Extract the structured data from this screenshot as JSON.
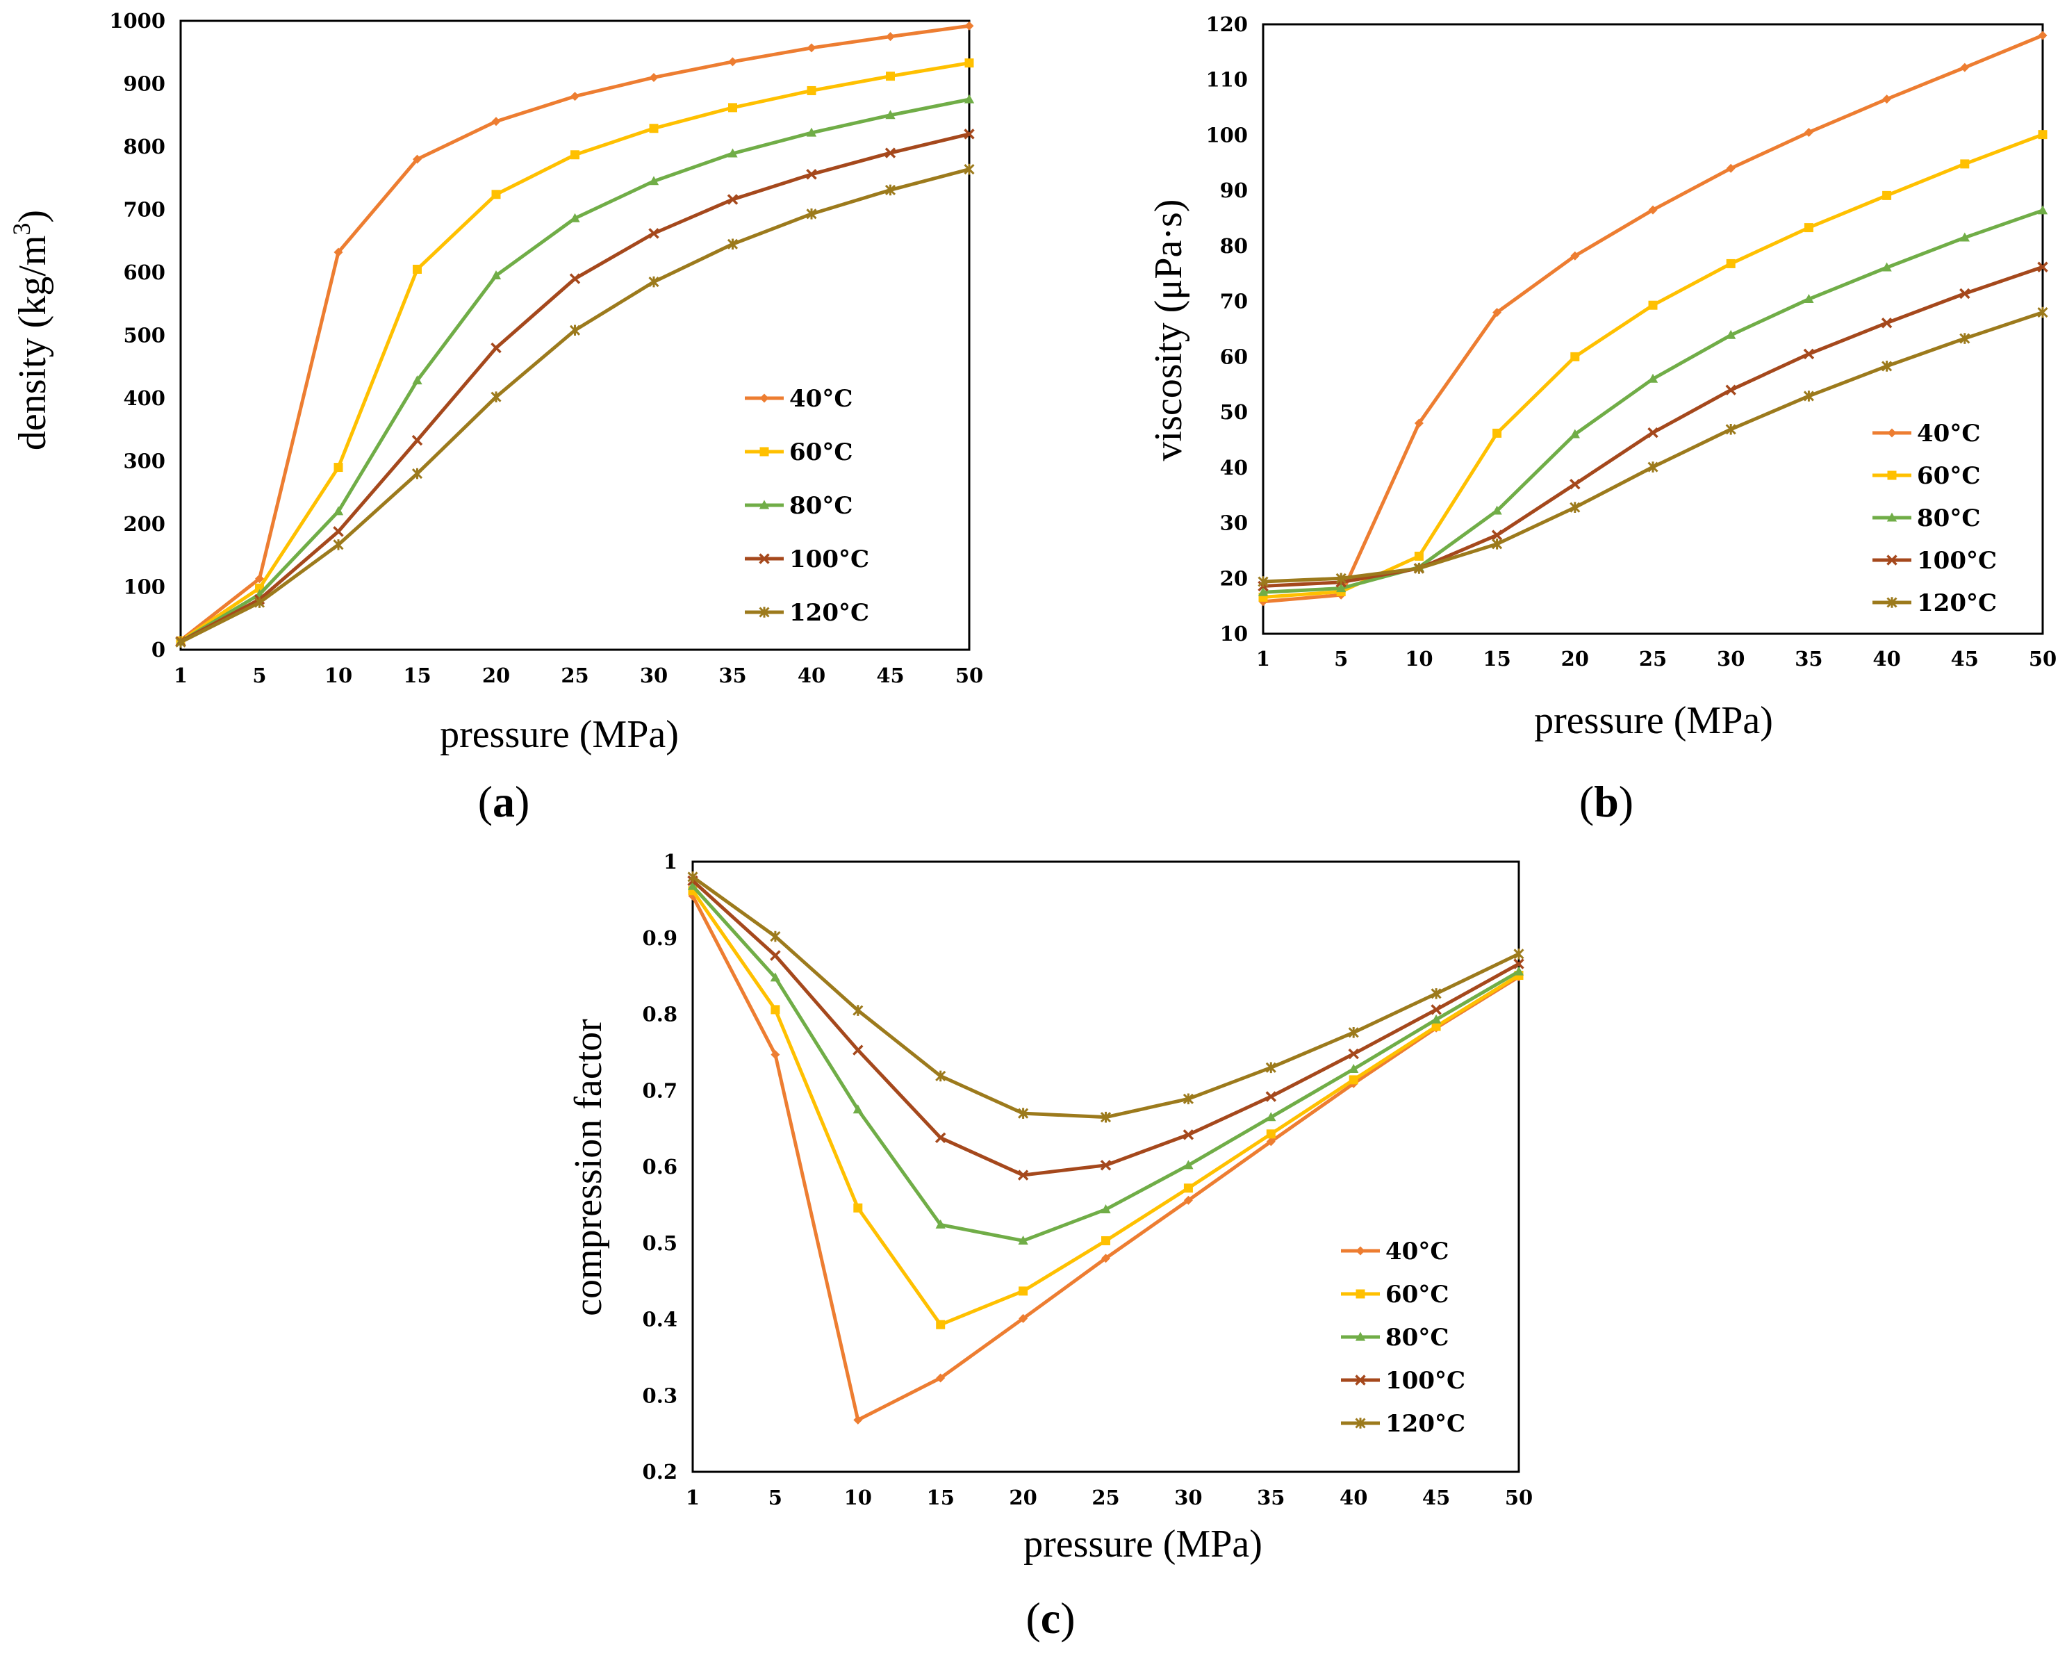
{
  "colors": {
    "40°C": "#ED7D31",
    "60°C": "#FFC000",
    "80°C": "#70AD47",
    "100°C": "#A5481C",
    "120°C": "#9C7A1C"
  },
  "chart_data": [
    {
      "type": "line",
      "panel_label": "a",
      "xlabel": "pressure (MPa)",
      "ylabel": "density (kg/m",
      "ylabel_sup": "3",
      "ylabel_close": ")",
      "categories": [
        "1",
        "5",
        "10",
        "15",
        "20",
        "25",
        "30",
        "35",
        "40",
        "45",
        "50"
      ],
      "ylim": [
        0,
        1000
      ],
      "yticks": [
        "0",
        "100",
        "200",
        "300",
        "400",
        "500",
        "600",
        "700",
        "800",
        "900",
        "1000"
      ],
      "legend_position": "center-right",
      "series": [
        {
          "name": "40°C",
          "marker": "diamond",
          "values": [
            15,
            113,
            632,
            780,
            840,
            880,
            910,
            935,
            957,
            975,
            992
          ]
        },
        {
          "name": "60°C",
          "marker": "square",
          "values": [
            14,
            98,
            290,
            605,
            724,
            787,
            829,
            862,
            889,
            912,
            933
          ]
        },
        {
          "name": "80°C",
          "marker": "triangle",
          "values": [
            13,
            88,
            220,
            428,
            595,
            686,
            745,
            789,
            822,
            850,
            875
          ]
        },
        {
          "name": "100°C",
          "marker": "x",
          "values": [
            13,
            80,
            188,
            333,
            480,
            590,
            662,
            716,
            756,
            790,
            820
          ]
        },
        {
          "name": "120°C",
          "marker": "star",
          "values": [
            12,
            75,
            167,
            280,
            402,
            508,
            585,
            645,
            693,
            731,
            764
          ]
        }
      ]
    },
    {
      "type": "line",
      "panel_label": "b",
      "xlabel": "pressure (MPa)",
      "ylabel": "viscosity (μPa·s)",
      "categories": [
        "1",
        "5",
        "10",
        "15",
        "20",
        "25",
        "30",
        "35",
        "40",
        "45",
        "50"
      ],
      "ylim": [
        10,
        120
      ],
      "yticks": [
        "10",
        "20",
        "30",
        "40",
        "50",
        "60",
        "70",
        "80",
        "90",
        "100",
        "110",
        "120"
      ],
      "legend_position": "lower-right",
      "series": [
        {
          "name": "40°C",
          "marker": "diamond",
          "values": [
            15.8,
            17.0,
            48.0,
            68.0,
            78.2,
            86.5,
            94.0,
            100.5,
            106.5,
            112.2,
            118.0
          ]
        },
        {
          "name": "60°C",
          "marker": "square",
          "values": [
            16.6,
            17.6,
            24.0,
            46.2,
            60.0,
            69.3,
            76.8,
            83.3,
            89.1,
            94.8,
            100.1
          ]
        },
        {
          "name": "80°C",
          "marker": "triangle",
          "values": [
            17.5,
            18.2,
            22.0,
            32.2,
            46.0,
            56.0,
            63.9,
            70.4,
            76.1,
            81.5,
            86.4
          ]
        },
        {
          "name": "100°C",
          "marker": "x",
          "values": [
            18.6,
            19.3,
            21.8,
            27.8,
            37.0,
            46.3,
            54.0,
            60.5,
            66.1,
            71.4,
            76.2
          ]
        },
        {
          "name": "120°C",
          "marker": "star",
          "values": [
            19.4,
            20.0,
            21.8,
            26.2,
            32.8,
            40.1,
            46.9,
            52.9,
            58.3,
            63.3,
            68.0
          ]
        }
      ]
    },
    {
      "type": "line",
      "panel_label": "c",
      "xlabel": "pressure (MPa)",
      "ylabel": "compression factor",
      "categories": [
        "1",
        "5",
        "10",
        "15",
        "20",
        "25",
        "30",
        "35",
        "40",
        "45",
        "50"
      ],
      "ylim": [
        0.2,
        1.0
      ],
      "yticks": [
        "0.2",
        "0.3",
        "0.4",
        "0.5",
        "0.6",
        "0.7",
        "0.8",
        "0.9",
        "1"
      ],
      "legend_position": "lower-right",
      "series": [
        {
          "name": "40°C",
          "marker": "diamond",
          "values": [
            0.955,
            0.747,
            0.268,
            0.323,
            0.401,
            0.48,
            0.556,
            0.633,
            0.709,
            0.782,
            0.849
          ]
        },
        {
          "name": "60°C",
          "marker": "square",
          "values": [
            0.962,
            0.806,
            0.546,
            0.393,
            0.437,
            0.503,
            0.572,
            0.643,
            0.714,
            0.784,
            0.851
          ]
        },
        {
          "name": "80°C",
          "marker": "triangle",
          "values": [
            0.968,
            0.848,
            0.675,
            0.524,
            0.503,
            0.544,
            0.602,
            0.665,
            0.728,
            0.793,
            0.856
          ]
        },
        {
          "name": "100°C",
          "marker": "x",
          "values": [
            0.975,
            0.877,
            0.753,
            0.638,
            0.589,
            0.602,
            0.642,
            0.692,
            0.748,
            0.806,
            0.866
          ]
        },
        {
          "name": "120°C",
          "marker": "star",
          "values": [
            0.98,
            0.902,
            0.805,
            0.719,
            0.67,
            0.665,
            0.689,
            0.73,
            0.776,
            0.827,
            0.879
          ]
        }
      ]
    }
  ]
}
